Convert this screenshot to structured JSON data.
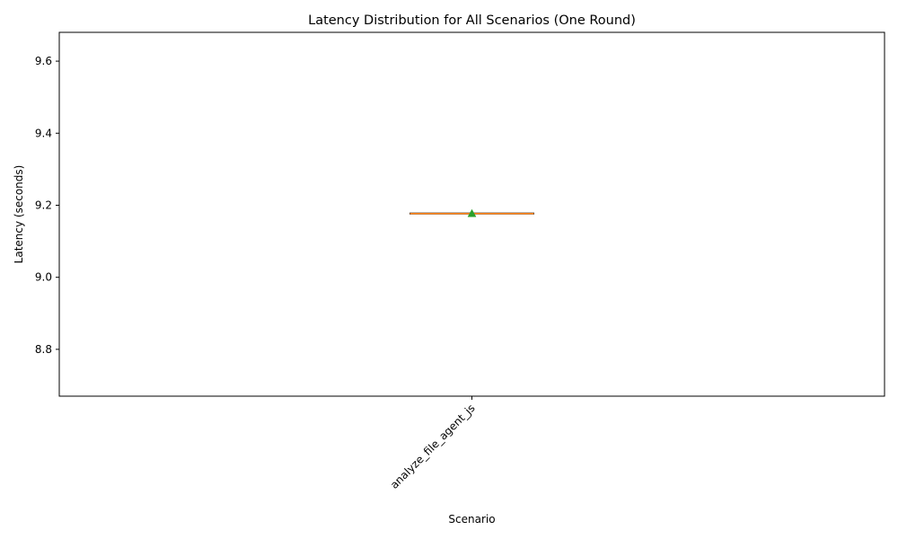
{
  "chart_data": {
    "type": "box",
    "title": "Latency Distribution for All Scenarios (One Round)",
    "xlabel": "Scenario",
    "ylabel": "Latency (seconds)",
    "categories": [
      "analyze_file_agent_js"
    ],
    "series": [
      {
        "values": [
          {
            "category": "analyze_file_agent_js",
            "min": 9.177,
            "q1": 9.177,
            "median": 9.177,
            "q3": 9.177,
            "max": 9.177,
            "mean": 9.177
          }
        ]
      }
    ],
    "ylim": [
      8.67,
      9.68
    ],
    "yticks": [
      8.8,
      9.0,
      9.2,
      9.4,
      9.6
    ],
    "ytick_labels": [
      "8.8",
      "9.0",
      "9.2",
      "9.4",
      "9.6"
    ],
    "grid": false,
    "colors": {
      "median": "#ff7f0e",
      "mean_marker": "#2ca02c",
      "box": "#000000"
    }
  }
}
